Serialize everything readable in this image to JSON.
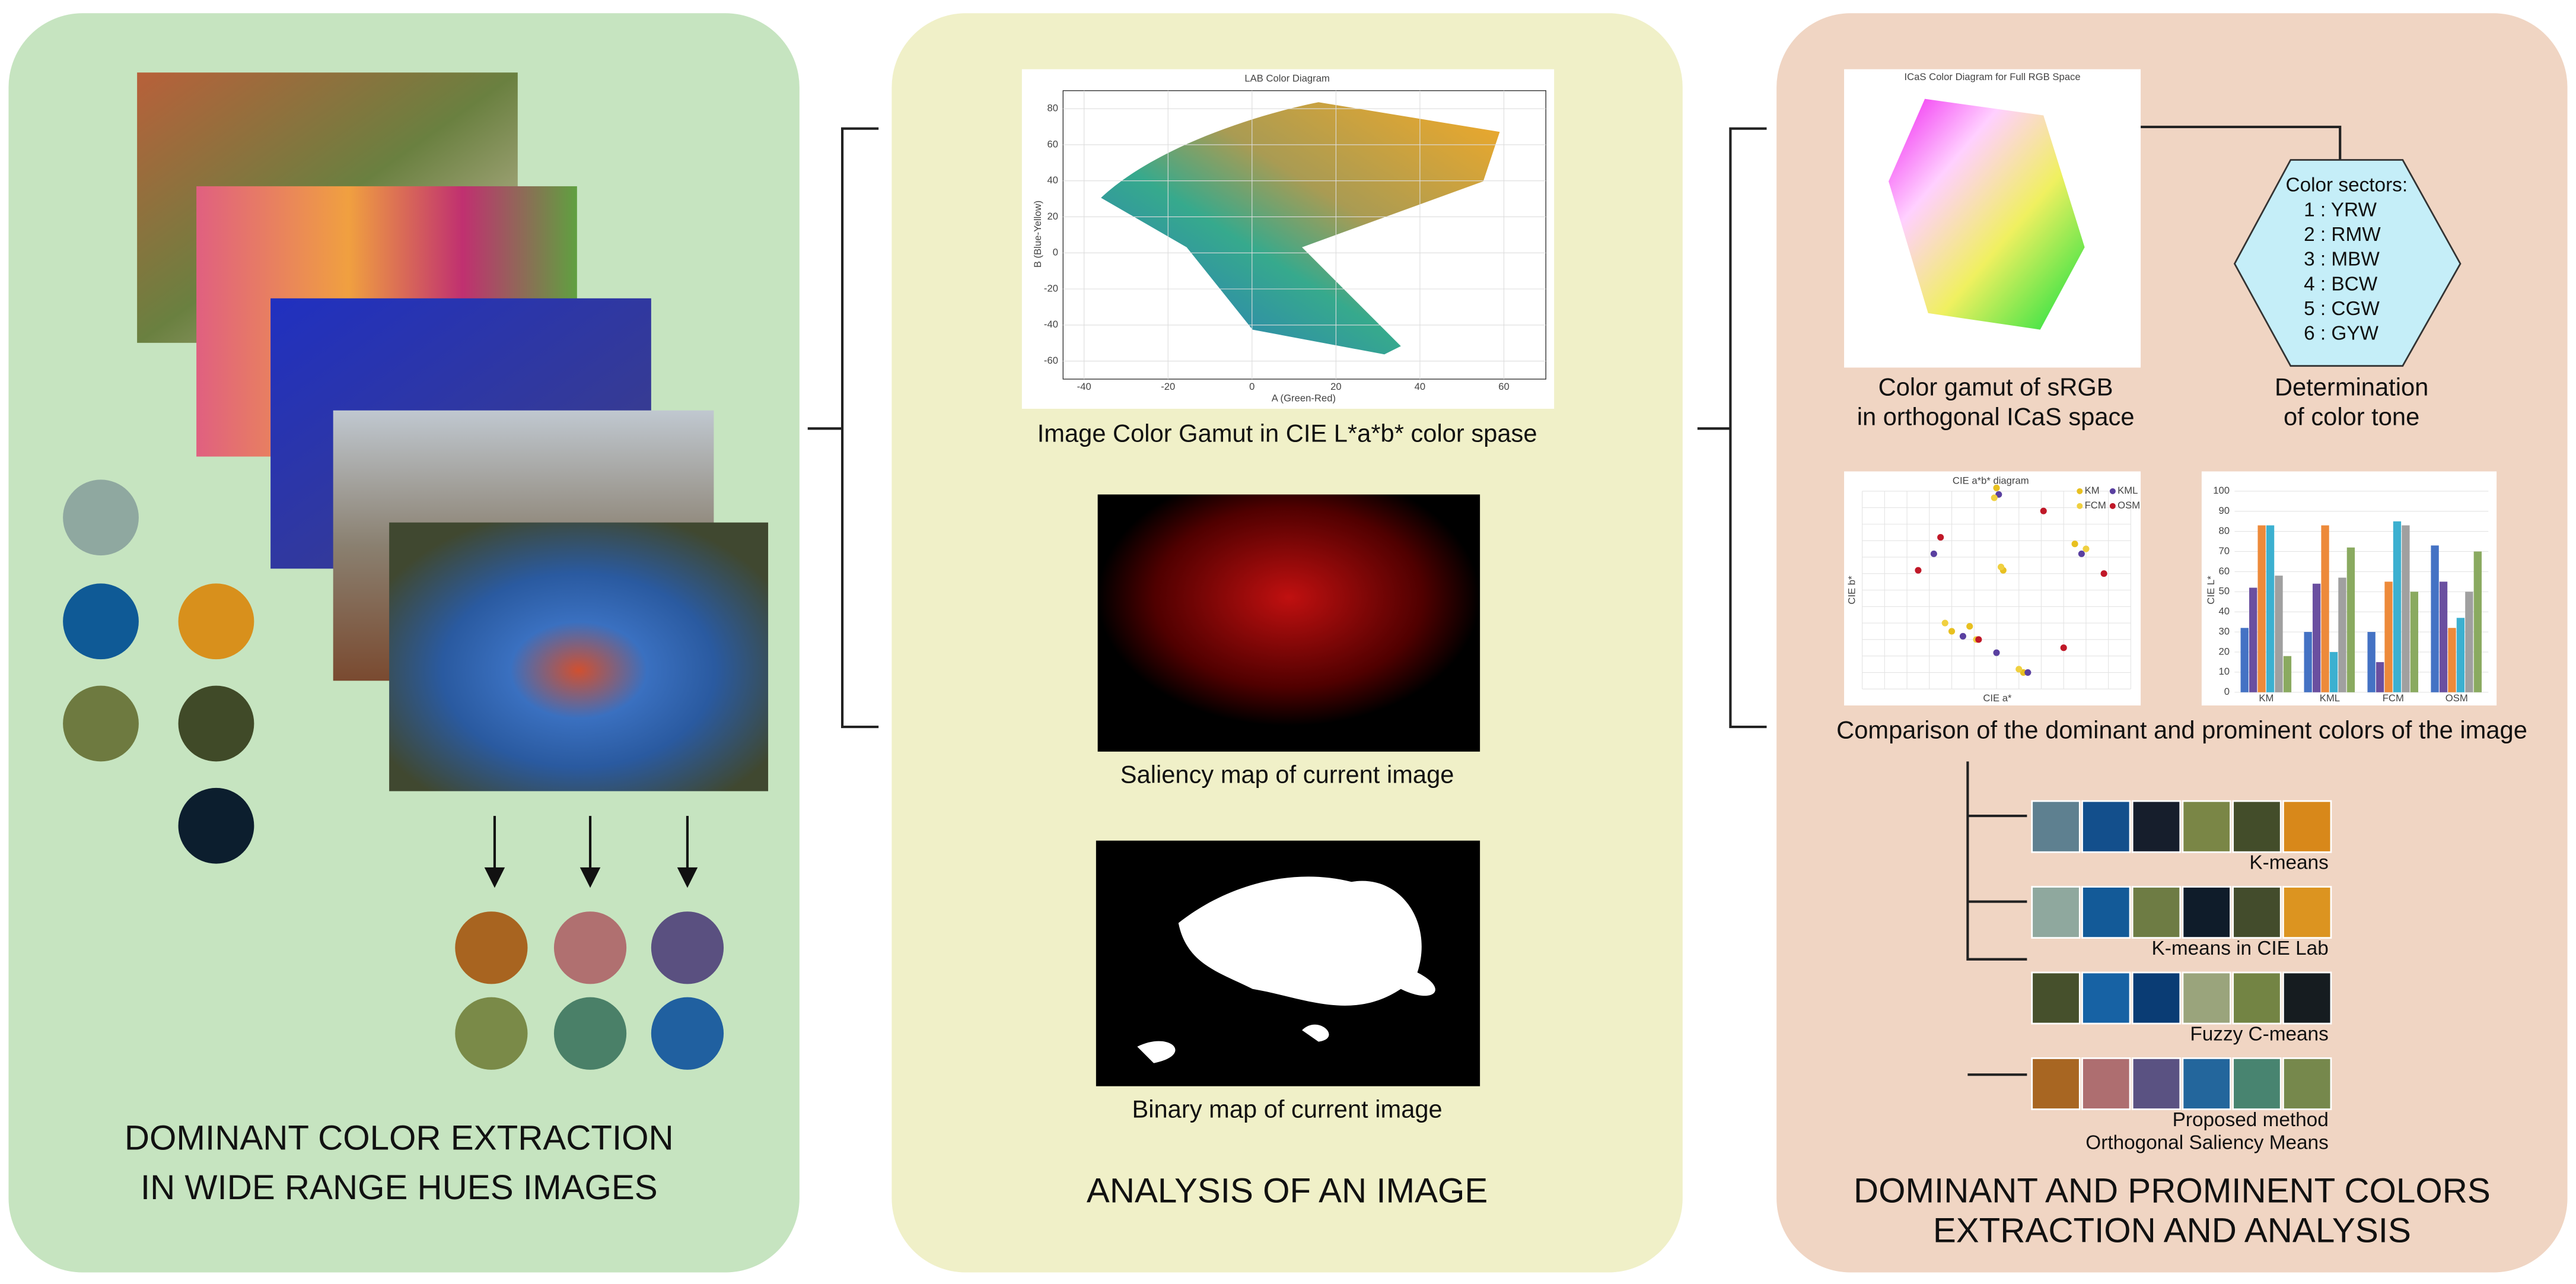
{
  "left": {
    "title": [
      "DOMINANT COLOR EXTRACTION",
      "IN WIDE RANGE HUES IMAGES"
    ],
    "swatches": [
      "#8fa8a0",
      "#0f5a96",
      "#d8901c",
      "#6e7a40",
      "#404a28",
      "#0c1e2e"
    ],
    "results": [
      "#a86420",
      "#b07070",
      "#5a5080",
      "#7a8a48",
      "#4a8068",
      "#2060a0"
    ]
  },
  "middle": {
    "title": "ANALYSIS OF AN IMAGE",
    "gamut_chart": {
      "type": "scatter",
      "title": "LAB Color Diagram",
      "x_label": "A (Green-Red)",
      "y_label": "B (Blue-Yellow)",
      "xlim": [
        -45,
        70
      ],
      "ylim": [
        -70,
        90
      ],
      "xticks": [
        -40,
        -20,
        0,
        20,
        40,
        60
      ],
      "yticks": [
        -60,
        -40,
        -20,
        0,
        20,
        40,
        60,
        80
      ],
      "grid": true
    },
    "captions": [
      "Image Color Gamut in CIE L*a*b* color spase",
      "Saliency map of current image",
      "Binary map of current image"
    ]
  },
  "right": {
    "title": [
      "DOMINANT  AND PROMINENT COLORS",
      "EXTRACTION AND ANALYSIS"
    ],
    "icas_chart": {
      "title": "ICaS Color Diagram for Full RGB Space"
    },
    "gamut_caption": [
      "Color gamut of sRGB",
      "in orthogonal ICaS space"
    ],
    "sectors": {
      "title": "Color sectors:",
      "items": [
        "1 : YRW",
        "2 : RMW",
        "3 : MBW",
        "4 : BCW",
        "5 : CGW",
        "6 : GYW"
      ]
    },
    "tone_caption": [
      "Determination",
      "of color tone"
    ],
    "scatter_chart": {
      "type": "scatter",
      "title": "CIE a*b* diagram",
      "x_label": "CIE a*",
      "y_label": "CIE b*",
      "xlim": [
        -60,
        60
      ],
      "ylim": [
        -60,
        60
      ],
      "grid": true,
      "series": [
        {
          "name": "KM",
          "color": "#e8c020",
          "x": [
            0,
            -12,
            -20,
            3,
            35,
            12
          ],
          "y": [
            62,
            -22,
            -25,
            12,
            28,
            -50
          ]
        },
        {
          "name": "KML",
          "color": "#5a40a0",
          "x": [
            1,
            -28,
            -15,
            38,
            0,
            14
          ],
          "y": [
            58,
            22,
            -28,
            22,
            -38,
            -50
          ]
        },
        {
          "name": "FCM",
          "color": "#f0d040",
          "x": [
            -1,
            -23,
            -9,
            40,
            2,
            10
          ],
          "y": [
            56,
            -20,
            -30,
            25,
            14,
            -48
          ]
        },
        {
          "name": "OSM",
          "color": "#c01828",
          "x": [
            -25,
            -35,
            -8,
            21,
            48,
            30
          ],
          "y": [
            32,
            12,
            -30,
            48,
            10,
            -35
          ]
        }
      ]
    },
    "bar_chart": {
      "type": "bar",
      "categories": [
        "KM",
        "KML",
        "FCM",
        "OSM"
      ],
      "ylim": [
        0,
        100
      ],
      "yticks": [
        0,
        10,
        20,
        30,
        40,
        50,
        60,
        70,
        80,
        90,
        100
      ],
      "y_label": "CIE L*",
      "series": [
        {
          "color": "#4472c4",
          "values": [
            32,
            30,
            30,
            73
          ]
        },
        {
          "color": "#6a4fa0",
          "values": [
            52,
            54,
            15,
            55
          ]
        },
        {
          "color": "#ed8a3a",
          "values": [
            83,
            83,
            55,
            32
          ]
        },
        {
          "color": "#3cb0d0",
          "values": [
            83,
            20,
            85,
            37
          ]
        },
        {
          "color": "#a0a0a0",
          "values": [
            58,
            57,
            83,
            50
          ]
        },
        {
          "color": "#8aaa60",
          "values": [
            18,
            72,
            50,
            70
          ]
        }
      ]
    },
    "comparison_caption": "Comparison of the dominant and prominent colors of the image",
    "palettes": [
      {
        "label": [
          "K-means"
        ],
        "colors": [
          "#5e8090",
          "#134f8c",
          "#161e2c",
          "#7a8646",
          "#434d2a",
          "#d8881a"
        ]
      },
      {
        "label": [
          "K-means in CIE Lab"
        ],
        "colors": [
          "#8fa89e",
          "#135a98",
          "#6e7c44",
          "#0f1c2a",
          "#434c2c",
          "#dc9420"
        ]
      },
      {
        "label": [
          "Fuzzy C-means"
        ],
        "colors": [
          "#46502c",
          "#1762a4",
          "#0a3c74",
          "#9aa47c",
          "#738444",
          "#161c20"
        ]
      },
      {
        "label": [
          "Proposed method",
          "Orthogonal Saliency Means"
        ],
        "colors": [
          "#a86622",
          "#ae6e70",
          "#5a5282",
          "#23669c",
          "#488470",
          "#76884c"
        ]
      }
    ]
  }
}
